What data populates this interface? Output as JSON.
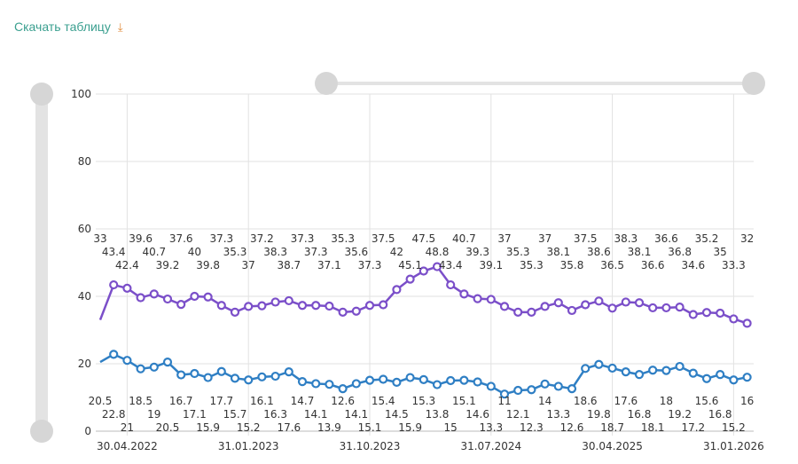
{
  "download_link": {
    "label": "Скачать таблицу",
    "icon": "download-icon"
  },
  "chart_data": {
    "type": "line",
    "title": "",
    "xlabel": "",
    "ylabel": "",
    "ylim": [
      0,
      100
    ],
    "yticks": [
      "0",
      "20",
      "40",
      "60",
      "80",
      "100"
    ],
    "xtick_labels": [
      "30.04.2022",
      "31.01.2023",
      "31.10.2023",
      "31.07.2024",
      "30.04.2025",
      "31.01.2026"
    ],
    "xtick_indices": [
      2,
      11,
      20,
      29,
      38,
      47
    ],
    "grid": true,
    "series": [
      {
        "name": "series-purple",
        "color": "#7b4fc9",
        "values": [
          33,
          43.4,
          42.4,
          39.6,
          40.7,
          39.2,
          37.6,
          40,
          39.8,
          37.3,
          35.3,
          37,
          37.2,
          38.3,
          38.7,
          37.3,
          37.3,
          37.1,
          35.3,
          35.6,
          37.3,
          37.5,
          42,
          45.1,
          47.5,
          48.8,
          43.4,
          40.7,
          39.3,
          39.1,
          37,
          35.3,
          35.3,
          37,
          38.1,
          35.8,
          37.5,
          38.6,
          36.5,
          38.3,
          38.1,
          36.6,
          36.6,
          36.8,
          34.6,
          35.2,
          35,
          33.3,
          32
        ]
      },
      {
        "name": "series-blue",
        "color": "#2f7fc4",
        "values": [
          20.5,
          22.8,
          21,
          18.5,
          19,
          20.5,
          16.7,
          17.1,
          15.9,
          17.7,
          15.7,
          15.2,
          16.1,
          16.3,
          17.6,
          14.7,
          14.1,
          13.9,
          12.6,
          14.1,
          15.1,
          15.4,
          14.5,
          15.9,
          15.3,
          13.8,
          15,
          15.1,
          14.6,
          13.3,
          11,
          12.1,
          12.3,
          14,
          13.3,
          12.6,
          18.6,
          19.8,
          18.7,
          17.6,
          16.8,
          18.1,
          18,
          19.2,
          17.2,
          15.6,
          16.8,
          15.2,
          16
        ]
      }
    ]
  }
}
